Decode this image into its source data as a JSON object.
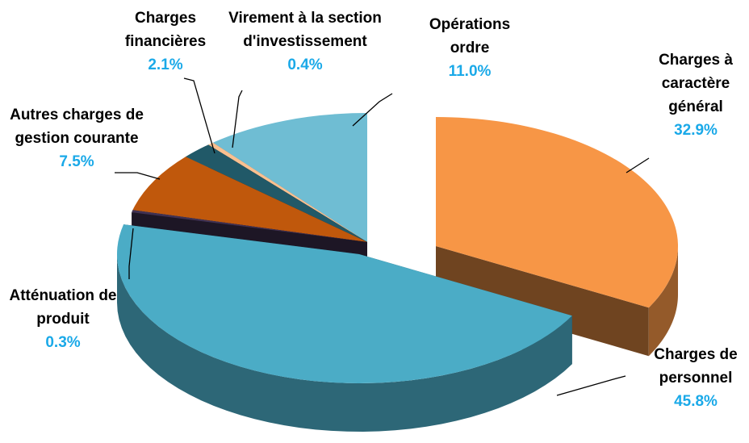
{
  "chart_data": {
    "type": "pie",
    "categories": [
      "Charges à caractère général",
      "Charges de personnel",
      "Atténuation de produit",
      "Autres charges de gestion courante",
      "Charges financières",
      "Virement à la section d'investissement",
      "Opérations ordre"
    ],
    "values": [
      32.9,
      45.8,
      0.3,
      7.5,
      2.1,
      0.4,
      11.0
    ],
    "value_labels": [
      "32.9%",
      "45.8%",
      "0.3%",
      "7.5%",
      "2.1%",
      "0.4%",
      "11.0%"
    ],
    "colors": [
      "#f79646",
      "#4bacc6",
      "#403152",
      "#c0580c",
      "#215968",
      "#fac090",
      "#6fbdd3"
    ]
  }
}
